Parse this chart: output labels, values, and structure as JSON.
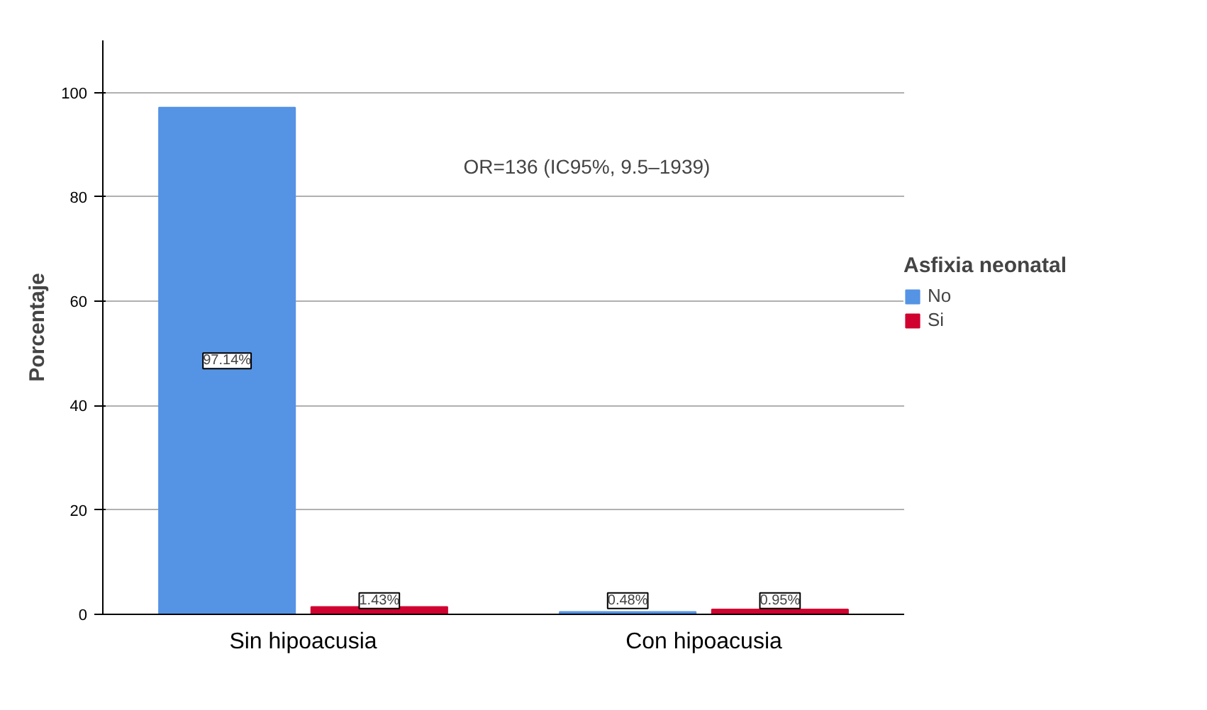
{
  "chart_data": {
    "type": "bar",
    "ylabel": "Porcentaje",
    "legend_title": "Asfixia neonatal",
    "categories": [
      "Sin hipoacusia",
      "Con hipoacusia"
    ],
    "series": [
      {
        "name": "No",
        "color": "#5593e4",
        "values": [
          97.14,
          0.48
        ],
        "value_labels": [
          "97.14%",
          "0.48%"
        ]
      },
      {
        "name": "Si",
        "color": "#d0022f",
        "values": [
          1.43,
          0.95
        ],
        "value_labels": [
          "1.43%",
          "0.95%"
        ]
      }
    ],
    "ylim": [
      0,
      110
    ],
    "yticks": [
      0,
      20,
      40,
      60,
      80,
      100
    ],
    "grid": "y",
    "legend": "right",
    "annotations": [
      "OR=136 (IC95%, 9.5–1939)"
    ]
  }
}
